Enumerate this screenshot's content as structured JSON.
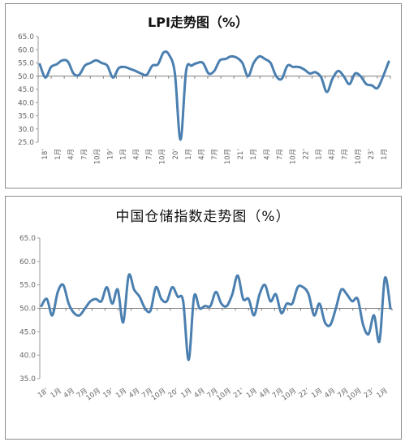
{
  "chart_data": [
    {
      "type": "line",
      "title": "LPI走势图（%）",
      "ylim": [
        25,
        65
      ],
      "yticks": [
        "25.0",
        "30.0",
        "35.0",
        "40.0",
        "45.0",
        "50.0",
        "55.0",
        "60.0",
        "65.0"
      ],
      "baseline": 50,
      "grid": false,
      "line_color": "#4a7fb0",
      "xlabels": [
        "18’",
        "1月",
        "4月",
        "7月",
        "10月",
        "19’",
        "1月",
        "4月",
        "7月",
        "10月",
        "20’",
        "1月",
        "4月",
        "7月",
        "10月",
        "21’",
        "1月",
        "4月",
        "7月",
        "10月",
        "22’",
        "1月",
        "4月",
        "7月",
        "10月",
        "23’",
        "1月"
      ],
      "values": [
        54.5,
        49.5,
        53.5,
        54.5,
        56,
        55.5,
        51,
        50.5,
        54,
        55,
        56,
        55,
        54,
        49.5,
        53,
        53.5,
        52.8,
        52,
        51,
        50.5,
        54,
        54.5,
        59,
        58,
        51,
        26,
        52,
        54,
        55,
        55,
        51,
        52,
        56,
        56.5,
        57.5,
        57,
        55,
        50,
        55,
        57.5,
        56.5,
        55,
        50,
        49,
        54,
        53.5,
        53.5,
        52.5,
        51,
        51.5,
        49.5,
        44,
        49,
        52,
        50,
        47,
        51,
        50,
        47,
        46.5,
        45.5,
        50,
        55.5
      ]
    },
    {
      "type": "line",
      "title": "中国仓储指数走势图（%）",
      "ylim": [
        35,
        65
      ],
      "yticks": [
        "35.0",
        "40.0",
        "45.0",
        "50.0",
        "55.0",
        "60.0",
        "65.0"
      ],
      "baseline": 50,
      "grid": false,
      "line_color": "#4a7fb0",
      "xlabels": [
        "18’",
        "1月",
        "4月",
        "7月",
        "10月",
        "19’",
        "1月",
        "4月",
        "7月",
        "10月",
        "20’",
        "1月",
        "4月",
        "7月",
        "10月",
        "21’",
        "1月",
        "4月",
        "7月",
        "10月",
        "22’",
        "1月",
        "4月",
        "7月",
        "10月",
        "23’",
        "1月"
      ],
      "values": [
        50.5,
        52,
        48.5,
        53.5,
        55,
        51,
        49,
        48.5,
        50,
        51.5,
        52,
        51.5,
        54.5,
        51,
        54,
        47,
        57,
        54,
        52.5,
        50,
        49.5,
        54.5,
        52,
        51.5,
        54.5,
        52.5,
        51.5,
        39,
        52.5,
        50,
        50.5,
        50.5,
        53.5,
        51,
        50.5,
        53,
        57,
        52,
        52,
        48.5,
        53,
        55,
        51.5,
        53,
        49,
        51,
        51,
        54.5,
        54.5,
        53,
        48.5,
        51,
        47,
        46.5,
        50,
        54,
        53,
        51.5,
        52,
        46.5,
        44.5,
        48.5,
        43,
        56.5,
        50
      ]
    }
  ]
}
